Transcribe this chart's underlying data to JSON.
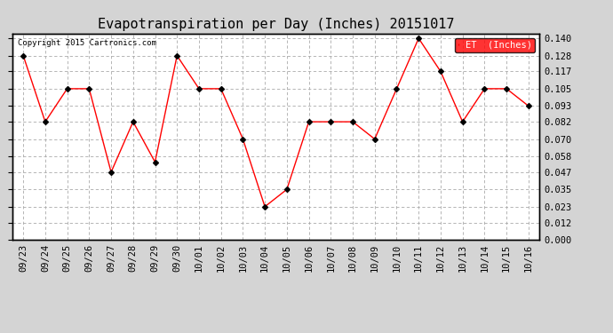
{
  "title": "Evapotranspiration per Day (Inches) 20151017",
  "copyright_text": "Copyright 2015 Cartronics.com",
  "legend_label": "ET  (Inches)",
  "x_labels": [
    "09/23",
    "09/24",
    "09/25",
    "09/26",
    "09/27",
    "09/28",
    "09/29",
    "09/30",
    "10/01",
    "10/02",
    "10/03",
    "10/04",
    "10/05",
    "10/06",
    "10/07",
    "10/08",
    "10/09",
    "10/10",
    "10/11",
    "10/12",
    "10/13",
    "10/14",
    "10/15",
    "10/16"
  ],
  "y_values": [
    0.128,
    0.082,
    0.105,
    0.105,
    0.047,
    0.082,
    0.054,
    0.128,
    0.105,
    0.105,
    0.07,
    0.023,
    0.035,
    0.082,
    0.082,
    0.082,
    0.07,
    0.105,
    0.14,
    0.117,
    0.082,
    0.105,
    0.105,
    0.093
  ],
  "ylim": [
    0.0,
    0.1435
  ],
  "y_ticks": [
    0.0,
    0.012,
    0.023,
    0.035,
    0.047,
    0.058,
    0.07,
    0.082,
    0.093,
    0.105,
    0.117,
    0.128,
    0.14
  ],
  "line_color": "red",
  "marker_color": "black",
  "background_color": "#d4d4d4",
  "plot_bg_color": "#ffffff",
  "grid_color": "#aaaaaa",
  "title_fontsize": 11,
  "tick_fontsize": 7.5,
  "legend_bg_color": "red",
  "legend_text_color": "white"
}
